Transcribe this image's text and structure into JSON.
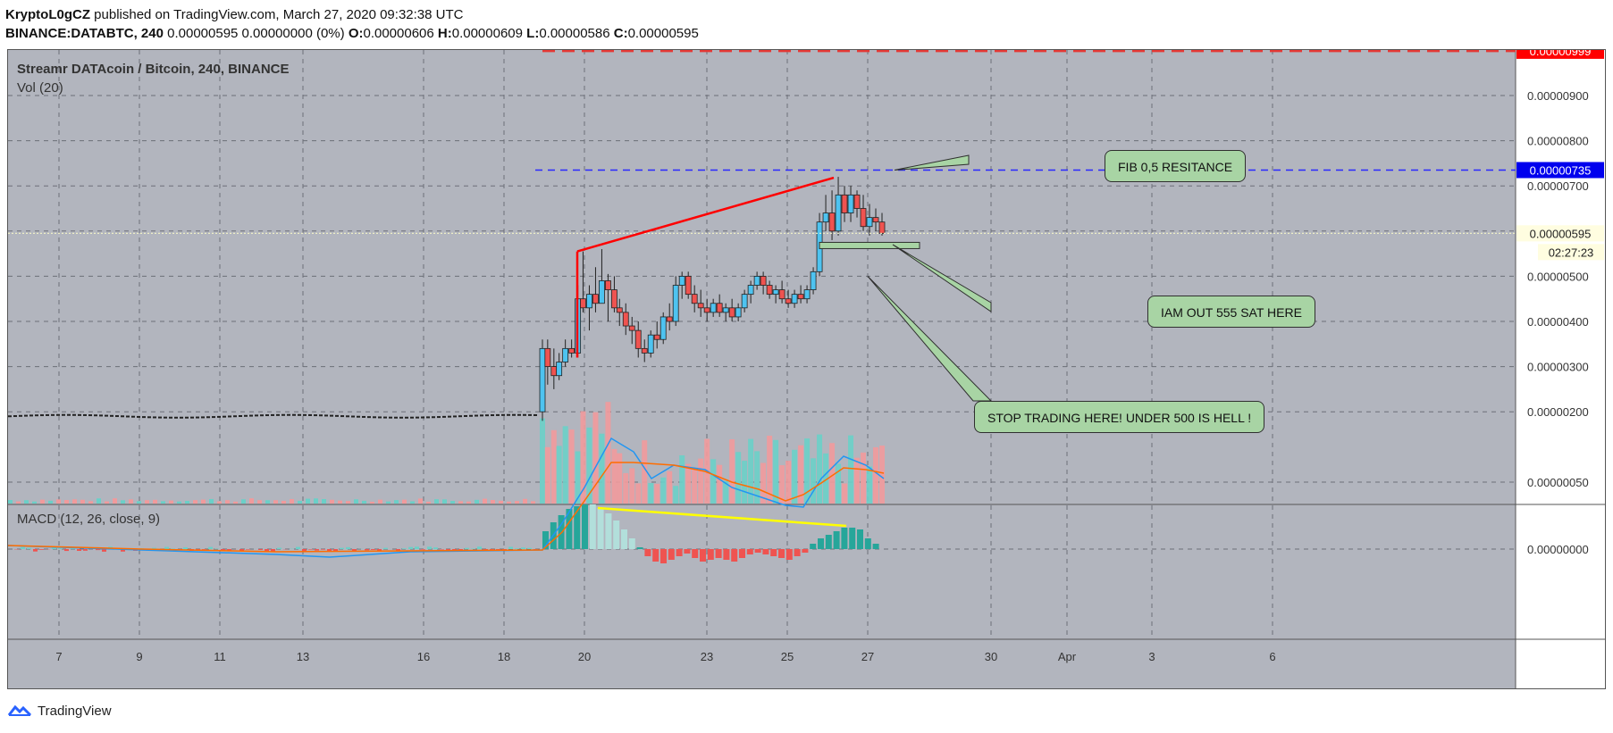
{
  "header": {
    "author": "KryptoL0gCZ",
    "published_text": "published on TradingView.com, March 27, 2020 09:32:38 UTC",
    "symbol": "BINANCE:DATABTC, 240",
    "price_change": "0.00000595 0.00000000 (0%)",
    "o_label": "O:",
    "o_value": "0.00000606",
    "h_label": "H:",
    "h_value": "0.00000609",
    "l_label": "L:",
    "l_value": "0.00000586",
    "c_label": "C:",
    "c_value": "0.00000595"
  },
  "legend": {
    "title": "Streamr DATAcoin / Bitcoin, 240, BINANCE",
    "vol": "Vol (20)",
    "macd": "MACD (12, 26, close, 9)"
  },
  "annotations": {
    "fib": "FIB 0,5 RESITANCE",
    "out": "IAM OUT 555 SAT HERE",
    "stop": "STOP TRADING HERE! UNDER 500 IS HELL !"
  },
  "price_tags": {
    "red": "0.00000999",
    "blue": "0.00000735",
    "current": "0.00000595",
    "countdown": "02:27:23"
  },
  "footer": {
    "brand": "TradingView"
  },
  "colors": {
    "background": "#b2b5be",
    "grid": "#6c6f78",
    "up": "#6ad0c8",
    "down": "#ef5350",
    "trend_red": "#ff0000",
    "fib_blue": "#2828ff",
    "macd_line": "#2196f3",
    "signal_line": "#ff6d00",
    "divergence": "#ffff00",
    "annotation": "#a8d4a4"
  },
  "chart_data": {
    "type": "candlestick",
    "title": "Streamr DATAcoin / Bitcoin, 240, BINANCE",
    "x_ticks": [
      "7",
      "9",
      "11",
      "13",
      "16",
      "18",
      "20",
      "23",
      "25",
      "27",
      "30",
      "Apr",
      "3",
      "6"
    ],
    "price_axis": {
      "ticks": [
        "0.00000900",
        "0.00000800",
        "0.00000700",
        "0.00000500",
        "0.00000400",
        "0.00000300",
        "0.00000200"
      ],
      "range": [
        1.45e-06,
        1.045e-05
      ]
    },
    "macd_axis": {
      "ticks": [
        "0.00000050",
        "0.00000000"
      ]
    },
    "horizontal_levels": [
      {
        "label": "0.00000999",
        "value": 9.99e-06,
        "color": "red",
        "style": "dashed"
      },
      {
        "label": "0.00000735",
        "value": 7.35e-06,
        "color": "blue",
        "style": "dashed"
      },
      {
        "label": "0.00000595",
        "value": 5.95e-06,
        "color": "yellow",
        "style": "dotted"
      }
    ],
    "candles_summary": {
      "pre_rally_range": [
        1.9e-06,
        2.2e-06
      ],
      "rally_start_day": "18",
      "first_peak": 5.55e-06,
      "second_peak": 7.18e-06,
      "last_close": 5.95e-06
    },
    "macd_series": [
      {
        "name": "MACD",
        "color": "#2196f3"
      },
      {
        "name": "Signal",
        "color": "#ff6d00"
      }
    ]
  }
}
